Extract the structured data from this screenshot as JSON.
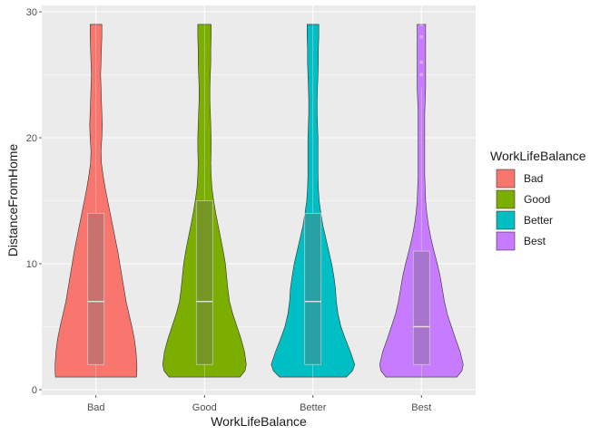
{
  "chart_data": {
    "type": "violin",
    "xlabel": "WorkLifeBalance",
    "ylabel": "DistanceFromHome",
    "ylim": [
      0,
      30
    ],
    "yticks": [
      0,
      10,
      20,
      30
    ],
    "categories": [
      "Bad",
      "Good",
      "Better",
      "Best"
    ],
    "colors": [
      "#F8766D",
      "#7CAE00",
      "#00BFC4",
      "#C77CFF"
    ],
    "legend": {
      "title": "WorkLifeBalance",
      "placement": "right",
      "labels": [
        "Bad",
        "Good",
        "Better",
        "Best"
      ]
    },
    "grid": true,
    "background": "#EBEBEB",
    "violins": [
      {
        "name": "Bad",
        "profile": [
          [
            1,
            0.97
          ],
          [
            1.5,
            0.98
          ],
          [
            2,
            0.98
          ],
          [
            3,
            0.96
          ],
          [
            4,
            0.92
          ],
          [
            5,
            0.86
          ],
          [
            6,
            0.79
          ],
          [
            7,
            0.72
          ],
          [
            8,
            0.67
          ],
          [
            9,
            0.62
          ],
          [
            10,
            0.57
          ],
          [
            11,
            0.52
          ],
          [
            12,
            0.46
          ],
          [
            13,
            0.4
          ],
          [
            14,
            0.34
          ],
          [
            15,
            0.28
          ],
          [
            16,
            0.22
          ],
          [
            17,
            0.17
          ],
          [
            18,
            0.13
          ],
          [
            19,
            0.12
          ],
          [
            20,
            0.14
          ],
          [
            21,
            0.15
          ],
          [
            22,
            0.14
          ],
          [
            23,
            0.13
          ],
          [
            24,
            0.12
          ],
          [
            25,
            0.11
          ],
          [
            26,
            0.12
          ],
          [
            27,
            0.13
          ],
          [
            28,
            0.14
          ],
          [
            29,
            0.14
          ]
        ],
        "box": {
          "q1": 2,
          "median": 7,
          "q3": 14,
          "lower": 1,
          "upper": 29
        },
        "outliers": []
      },
      {
        "name": "Good",
        "profile": [
          [
            1,
            0.85
          ],
          [
            1.5,
            0.97
          ],
          [
            2,
            1.0
          ],
          [
            3,
            0.96
          ],
          [
            4,
            0.88
          ],
          [
            5,
            0.78
          ],
          [
            6,
            0.68
          ],
          [
            7,
            0.6
          ],
          [
            8,
            0.56
          ],
          [
            9,
            0.53
          ],
          [
            10,
            0.5
          ],
          [
            11,
            0.45
          ],
          [
            12,
            0.39
          ],
          [
            13,
            0.33
          ],
          [
            14,
            0.27
          ],
          [
            15,
            0.22
          ],
          [
            16,
            0.18
          ],
          [
            17,
            0.16
          ],
          [
            18,
            0.15
          ],
          [
            19,
            0.16
          ],
          [
            20,
            0.16
          ],
          [
            21,
            0.15
          ],
          [
            22,
            0.14
          ],
          [
            23,
            0.13
          ],
          [
            24,
            0.13
          ],
          [
            25,
            0.14
          ],
          [
            26,
            0.15
          ],
          [
            27,
            0.15
          ],
          [
            28,
            0.16
          ],
          [
            29,
            0.16
          ]
        ],
        "box": {
          "q1": 2,
          "median": 7,
          "q3": 15,
          "lower": 1,
          "upper": 29
        },
        "outliers": []
      },
      {
        "name": "Better",
        "profile": [
          [
            1,
            0.8
          ],
          [
            1.5,
            0.95
          ],
          [
            2,
            1.0
          ],
          [
            3,
            0.9
          ],
          [
            4,
            0.78
          ],
          [
            5,
            0.67
          ],
          [
            6,
            0.6
          ],
          [
            7,
            0.56
          ],
          [
            8,
            0.54
          ],
          [
            9,
            0.5
          ],
          [
            10,
            0.45
          ],
          [
            11,
            0.38
          ],
          [
            12,
            0.31
          ],
          [
            13,
            0.24
          ],
          [
            14,
            0.19
          ],
          [
            15,
            0.15
          ],
          [
            16,
            0.13
          ],
          [
            17,
            0.12
          ],
          [
            18,
            0.12
          ],
          [
            19,
            0.12
          ],
          [
            20,
            0.12
          ],
          [
            21,
            0.11
          ],
          [
            22,
            0.1
          ],
          [
            23,
            0.1
          ],
          [
            24,
            0.11
          ],
          [
            25,
            0.12
          ],
          [
            26,
            0.13
          ],
          [
            27,
            0.13
          ],
          [
            28,
            0.14
          ],
          [
            29,
            0.14
          ]
        ],
        "box": {
          "q1": 2,
          "median": 7,
          "q3": 14,
          "lower": 1,
          "upper": 29
        },
        "outliers": []
      },
      {
        "name": "Best",
        "profile": [
          [
            1,
            0.85
          ],
          [
            1.5,
            0.97
          ],
          [
            2,
            1.0
          ],
          [
            3,
            0.93
          ],
          [
            4,
            0.82
          ],
          [
            5,
            0.72
          ],
          [
            6,
            0.62
          ],
          [
            7,
            0.55
          ],
          [
            8,
            0.5
          ],
          [
            9,
            0.45
          ],
          [
            10,
            0.38
          ],
          [
            11,
            0.3
          ],
          [
            12,
            0.23
          ],
          [
            13,
            0.17
          ],
          [
            14,
            0.13
          ],
          [
            15,
            0.1
          ],
          [
            16,
            0.09
          ],
          [
            17,
            0.08
          ],
          [
            18,
            0.08
          ],
          [
            19,
            0.08
          ],
          [
            20,
            0.08
          ],
          [
            21,
            0.08
          ],
          [
            22,
            0.08
          ],
          [
            23,
            0.09
          ],
          [
            24,
            0.1
          ],
          [
            25,
            0.1
          ],
          [
            26,
            0.1
          ],
          [
            27,
            0.1
          ],
          [
            28,
            0.1
          ],
          [
            29,
            0.1
          ]
        ],
        "box": {
          "q1": 2,
          "median": 5,
          "q3": 11,
          "lower": 1,
          "upper": 24
        },
        "outliers": [
          25,
          26,
          28,
          29
        ]
      }
    ]
  }
}
